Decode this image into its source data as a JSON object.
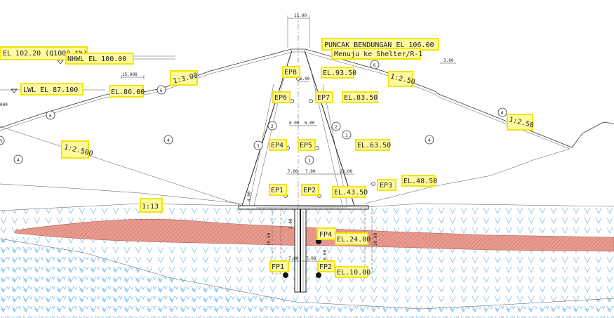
{
  "colors": {
    "highlight": "#fff9a0",
    "highlight_border": "#f2e600",
    "clay_layer": "#e89a8e",
    "foundation_hatch": "#6ab4e8"
  },
  "labels": {
    "el_flood": "EL 102.20 (Q1000 th)",
    "nhwl": "NHWL   EL 100.00",
    "lwl": "LWL   EL 87.100",
    "el_86": "EL.86.00",
    "slope_13_left": "1:3.00",
    "slope_25_up_right": "1:2.50",
    "slope_25_down_right": "1:2.50",
    "slope_2500_left": "1:2.500",
    "slope_113": "1:13",
    "crest": "PUNCAK BENDUNGAN EL 106.00",
    "shelter": "Menuju ke Shelter/R-1",
    "el_9350": "EL.93.50",
    "el_8350": "EL.83.50",
    "el_6350": "EL.63.50",
    "el_4850": "EL.48.50",
    "el_4350": "EL.43.50",
    "el_2400": "EL.24.00",
    "el_1000": "EL.10.00",
    "edge_000": "000"
  },
  "points": {
    "ep8": "EP8",
    "ep6": "EP6",
    "ep7": "EP7",
    "ep4": "EP4",
    "ep5": "EP5",
    "ep1": "EP1",
    "ep2": "EP2",
    "ep3": "EP3",
    "fp4": "FP4",
    "fp1": "FP1",
    "fp2": "FP2"
  },
  "zones": {
    "z1": "1",
    "z2a": "2",
    "z2b": "2",
    "z3a": "3",
    "z3b": "3",
    "z4a": "4",
    "z4b": "4",
    "z4c": "4",
    "z5": "5",
    "z6a": "6",
    "z6b": "6",
    "z6c": "6",
    "z6d": "6"
  },
  "dimensions": {
    "crest_width": "11.00",
    "berm_left": "15.000",
    "berm_right": "3.00",
    "ep8_offset": "6.00",
    "ep45_a": "6.00",
    "ep45_b": "6.00",
    "ep12_a": "7.00",
    "ep12_b": "7.00",
    "ep3_offset": "23.00",
    "fp_a": "7.00",
    "fp_b": "7.00",
    "fp_depth": "10.00",
    "core_height": "5.00",
    "found_depth": "20.00",
    "found_depth_left": "19.50",
    "fp4_depth": "5.00",
    "side_4_00": "4.00"
  }
}
